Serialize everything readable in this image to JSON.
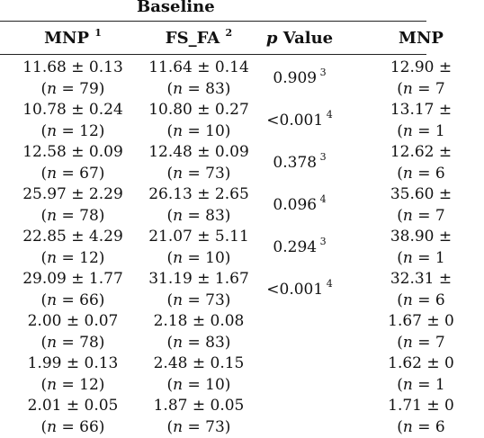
{
  "table": {
    "group_title": "Baseline",
    "headers": {
      "mnp": "MNP",
      "mnp_sup": "1",
      "fs_fa": "FS_FA",
      "fs_fa_sup": "2",
      "p_italic": "p",
      "p_rest": " Value",
      "mnp2": "MNP"
    },
    "rows": [
      {
        "mnp": "11.68 ± 0.13",
        "fs": "11.64 ± 0.14",
        "mnp2": "12.90 ±"
      },
      {
        "mnp": "(n = 79)",
        "fs": "(n = 83)",
        "mnp2": "(n = 7"
      },
      {
        "mnp": "10.78 ± 0.24",
        "fs": "10.80 ± 0.27",
        "mnp2": "13.17 ±"
      },
      {
        "mnp": "(n = 12)",
        "fs": "(n = 10)",
        "mnp2": "(n = 1"
      },
      {
        "mnp": "12.58 ± 0.09",
        "fs": "12.48 ± 0.09",
        "mnp2": "12.62 ±"
      },
      {
        "mnp": "(n = 67)",
        "fs": "(n = 73)",
        "mnp2": "(n = 6"
      },
      {
        "mnp": "25.97 ± 2.29",
        "fs": "26.13 ± 2.65",
        "mnp2": "35.60 ±"
      },
      {
        "mnp": "(n = 78)",
        "fs": "(n = 83)",
        "mnp2": "(n = 7"
      },
      {
        "mnp": "22.85 ± 4.29",
        "fs": "21.07 ± 5.11",
        "mnp2": "38.90 ±"
      },
      {
        "mnp": "(n = 12)",
        "fs": "(n = 10)",
        "mnp2": "(n = 1"
      },
      {
        "mnp": "29.09 ± 1.77",
        "fs": "31.19 ± 1.67",
        "mnp2": "32.31 ±"
      },
      {
        "mnp": "(n = 66)",
        "fs": "(n = 73)",
        "mnp2": "(n = 6"
      },
      {
        "mnp": "2.00 ± 0.07",
        "fs": "2.18 ± 0.08",
        "mnp2": "1.67 ± 0"
      },
      {
        "mnp": "(n = 78)",
        "fs": "(n = 83)",
        "mnp2": "(n = 7"
      },
      {
        "mnp": "1.99 ± 0.13",
        "fs": "2.48 ± 0.15",
        "mnp2": "1.62 ± 0"
      },
      {
        "mnp": "(n = 12)",
        "fs": "(n = 10)",
        "mnp2": "(n = 1"
      },
      {
        "mnp": "2.01 ± 0.05",
        "fs": "1.87 ± 0.05",
        "mnp2": "1.71 ± 0"
      },
      {
        "mnp": "(n = 66)",
        "fs": "(n = 73)",
        "mnp2": "(n = 6"
      }
    ],
    "p_values": [
      {
        "value": "0.909",
        "sup": "3"
      },
      {
        "value": "<0.001",
        "sup": "4"
      },
      {
        "value": "0.378",
        "sup": "3"
      },
      {
        "value": "0.096",
        "sup": "4"
      },
      {
        "value": "0.294",
        "sup": "3"
      },
      {
        "value": "<0.001",
        "sup": "4"
      }
    ]
  }
}
